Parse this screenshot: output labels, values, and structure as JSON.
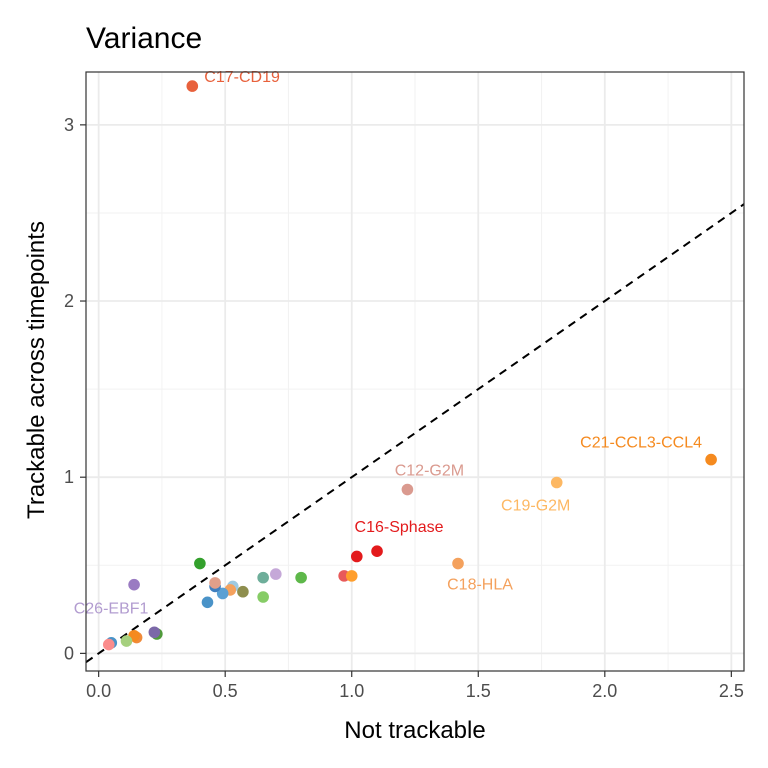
{
  "chart_data": {
    "type": "scatter",
    "title": "Variance",
    "xlabel": "Not trackable",
    "ylabel": "Trackable across timepoints",
    "xlim": [
      -0.05,
      2.55
    ],
    "ylim": [
      -0.1,
      3.3
    ],
    "x_ticks": [
      0.0,
      0.5,
      1.0,
      1.5,
      2.0,
      2.5
    ],
    "x_tick_labels": [
      "0.0",
      "0.5",
      "1.0",
      "1.5",
      "2.0",
      "2.5"
    ],
    "y_ticks": [
      0,
      1,
      2,
      3
    ],
    "y_tick_labels": [
      "0",
      "1",
      "2",
      "3"
    ],
    "grid": true,
    "reference_line": {
      "type": "identity",
      "style": "dashed",
      "color": "#000000"
    },
    "points": [
      {
        "x": 0.37,
        "y": 3.22,
        "color": "#E8613C",
        "label": "C17-CD19",
        "label_color": "#E8613C"
      },
      {
        "x": 2.42,
        "y": 1.1,
        "color": "#F58A1F",
        "label": "C21-CCL3-CCL4",
        "label_color": "#F58A1F"
      },
      {
        "x": 1.81,
        "y": 0.97,
        "color": "#FDB863",
        "label": "C19-G2M",
        "label_color": "#FDB863"
      },
      {
        "x": 1.22,
        "y": 0.93,
        "color": "#DA9A8F",
        "label": "C12-G2M",
        "label_color": "#DA9A8F"
      },
      {
        "x": 1.42,
        "y": 0.51,
        "color": "#F4A15D",
        "label": "C18-HLA",
        "label_color": "#F4A15D"
      },
      {
        "x": 1.1,
        "y": 0.58,
        "color": "#E31A1C",
        "label": "C16-Sphase",
        "label_color": "#E31A1C"
      },
      {
        "x": 0.14,
        "y": 0.39,
        "color": "#9A7BC2",
        "label": "C26-EBF1",
        "label_color": "#B29CD0"
      },
      {
        "x": 1.02,
        "y": 0.55,
        "color": "#E31A1C"
      },
      {
        "x": 0.97,
        "y": 0.44,
        "color": "#E85A5A"
      },
      {
        "x": 1.0,
        "y": 0.44,
        "color": "#FF9E2C"
      },
      {
        "x": 0.8,
        "y": 0.43,
        "color": "#5EB84A"
      },
      {
        "x": 0.7,
        "y": 0.45,
        "color": "#C5A8D8"
      },
      {
        "x": 0.65,
        "y": 0.43,
        "color": "#6EAE9A"
      },
      {
        "x": 0.65,
        "y": 0.32,
        "color": "#86CC66"
      },
      {
        "x": 0.57,
        "y": 0.35,
        "color": "#8E8E4E"
      },
      {
        "x": 0.53,
        "y": 0.38,
        "color": "#9ECAE1"
      },
      {
        "x": 0.52,
        "y": 0.36,
        "color": "#F4A15D"
      },
      {
        "x": 0.49,
        "y": 0.34,
        "color": "#5AA0D4"
      },
      {
        "x": 0.46,
        "y": 0.38,
        "color": "#3F7FBF"
      },
      {
        "x": 0.46,
        "y": 0.4,
        "color": "#E09F8A"
      },
      {
        "x": 0.43,
        "y": 0.29,
        "color": "#4A93C8"
      },
      {
        "x": 0.4,
        "y": 0.51,
        "color": "#33A02C"
      },
      {
        "x": 0.23,
        "y": 0.11,
        "color": "#4F9A3A"
      },
      {
        "x": 0.22,
        "y": 0.12,
        "color": "#7B68A8"
      },
      {
        "x": 0.15,
        "y": 0.09,
        "color": "#F08A3A"
      },
      {
        "x": 0.14,
        "y": 0.1,
        "color": "#F58A1F"
      },
      {
        "x": 0.11,
        "y": 0.07,
        "color": "#A6D07E"
      },
      {
        "x": 0.05,
        "y": 0.06,
        "color": "#4A93C8"
      },
      {
        "x": 0.04,
        "y": 0.05,
        "color": "#FB8C8C"
      }
    ]
  }
}
